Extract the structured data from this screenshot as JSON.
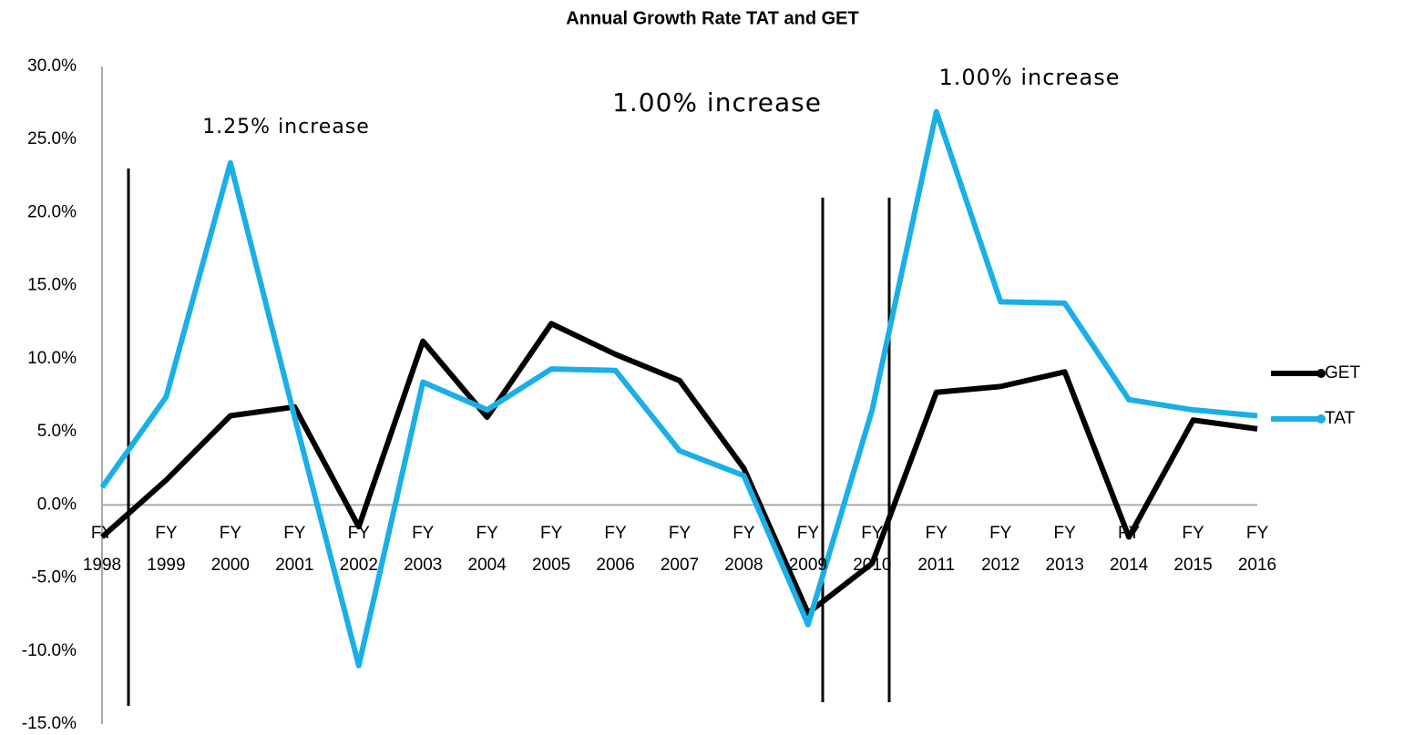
{
  "chart_data": {
    "type": "line",
    "title": "Annual Growth Rate TAT and GET",
    "categories": [
      "FY 1998",
      "FY 1999",
      "FY 2000",
      "FY 2001",
      "FY 2002",
      "FY 2003",
      "FY 2004",
      "FY 2005",
      "FY 2006",
      "FY 2007",
      "FY 2008",
      "FY 2009",
      "FY 2010",
      "FY 2011",
      "FY 2012",
      "FY 2013",
      "FY 2014",
      "FY 2015",
      "FY 2016"
    ],
    "series": [
      {
        "name": "GET",
        "color": "#000000",
        "values": [
          -2.2,
          1.7,
          6.1,
          6.7,
          -1.5,
          11.2,
          6.0,
          12.4,
          10.3,
          8.5,
          2.5,
          -7.4,
          -4.0,
          7.7,
          8.1,
          9.1,
          -2.2,
          5.8,
          5.2
        ]
      },
      {
        "name": "TAT",
        "color": "#1aafe6",
        "values": [
          1.2,
          7.4,
          23.4,
          6.0,
          -11.0,
          8.4,
          6.5,
          9.3,
          9.2,
          3.7,
          2.0,
          -8.2,
          6.5,
          26.9,
          13.9,
          13.8,
          7.2,
          6.5,
          6.1
        ]
      }
    ],
    "annotations": [
      "1.25% increase",
      "1.00% increase",
      "1.00% increase"
    ],
    "ylim": [
      -15,
      30
    ],
    "yticks": [
      {
        "value": -15,
        "label": "-15.0%"
      },
      {
        "value": -10,
        "label": "-10.0%"
      },
      {
        "value": -5,
        "label": "-5.0%"
      },
      {
        "value": 0,
        "label": "0.0%"
      },
      {
        "value": 5,
        "label": "5.0%"
      },
      {
        "value": 10,
        "label": "10.0%"
      },
      {
        "value": 15,
        "label": "15.0%"
      },
      {
        "value": 20,
        "label": "20.0%"
      },
      {
        "value": 25,
        "label": "25.0%"
      },
      {
        "value": 30,
        "label": "30.0%"
      }
    ],
    "legend": "right"
  }
}
